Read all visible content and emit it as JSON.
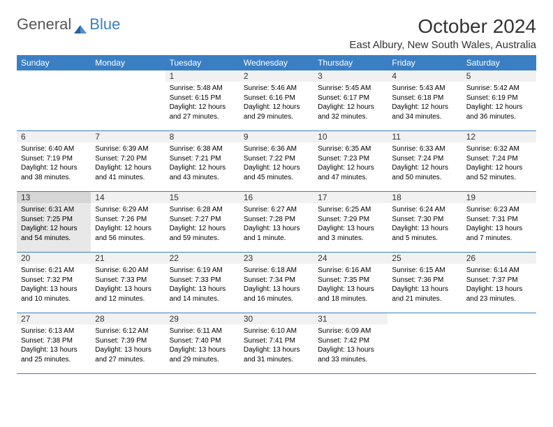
{
  "logo": {
    "text1": "General",
    "text2": "Blue"
  },
  "title": "October 2024",
  "location": "East Albury, New South Wales, Australia",
  "colors": {
    "headerBlue": "#3a7fc4",
    "logoGray": "#555555",
    "background": "#ffffff",
    "todayBg": "#e8e8e8",
    "numBg": "#f1f1f1"
  },
  "weekdays": [
    "Sunday",
    "Monday",
    "Tuesday",
    "Wednesday",
    "Thursday",
    "Friday",
    "Saturday"
  ],
  "firstDayOffset": 2,
  "daysInMonth": 31,
  "todayDate": 13,
  "days": {
    "1": {
      "sunrise": "5:48 AM",
      "sunset": "6:15 PM",
      "daylight": "12 hours and 27 minutes."
    },
    "2": {
      "sunrise": "5:46 AM",
      "sunset": "6:16 PM",
      "daylight": "12 hours and 29 minutes."
    },
    "3": {
      "sunrise": "5:45 AM",
      "sunset": "6:17 PM",
      "daylight": "12 hours and 32 minutes."
    },
    "4": {
      "sunrise": "5:43 AM",
      "sunset": "6:18 PM",
      "daylight": "12 hours and 34 minutes."
    },
    "5": {
      "sunrise": "5:42 AM",
      "sunset": "6:19 PM",
      "daylight": "12 hours and 36 minutes."
    },
    "6": {
      "sunrise": "6:40 AM",
      "sunset": "7:19 PM",
      "daylight": "12 hours and 38 minutes."
    },
    "7": {
      "sunrise": "6:39 AM",
      "sunset": "7:20 PM",
      "daylight": "12 hours and 41 minutes."
    },
    "8": {
      "sunrise": "6:38 AM",
      "sunset": "7:21 PM",
      "daylight": "12 hours and 43 minutes."
    },
    "9": {
      "sunrise": "6:36 AM",
      "sunset": "7:22 PM",
      "daylight": "12 hours and 45 minutes."
    },
    "10": {
      "sunrise": "6:35 AM",
      "sunset": "7:23 PM",
      "daylight": "12 hours and 47 minutes."
    },
    "11": {
      "sunrise": "6:33 AM",
      "sunset": "7:24 PM",
      "daylight": "12 hours and 50 minutes."
    },
    "12": {
      "sunrise": "6:32 AM",
      "sunset": "7:24 PM",
      "daylight": "12 hours and 52 minutes."
    },
    "13": {
      "sunrise": "6:31 AM",
      "sunset": "7:25 PM",
      "daylight": "12 hours and 54 minutes."
    },
    "14": {
      "sunrise": "6:29 AM",
      "sunset": "7:26 PM",
      "daylight": "12 hours and 56 minutes."
    },
    "15": {
      "sunrise": "6:28 AM",
      "sunset": "7:27 PM",
      "daylight": "12 hours and 59 minutes."
    },
    "16": {
      "sunrise": "6:27 AM",
      "sunset": "7:28 PM",
      "daylight": "13 hours and 1 minute."
    },
    "17": {
      "sunrise": "6:25 AM",
      "sunset": "7:29 PM",
      "daylight": "13 hours and 3 minutes."
    },
    "18": {
      "sunrise": "6:24 AM",
      "sunset": "7:30 PM",
      "daylight": "13 hours and 5 minutes."
    },
    "19": {
      "sunrise": "6:23 AM",
      "sunset": "7:31 PM",
      "daylight": "13 hours and 7 minutes."
    },
    "20": {
      "sunrise": "6:21 AM",
      "sunset": "7:32 PM",
      "daylight": "13 hours and 10 minutes."
    },
    "21": {
      "sunrise": "6:20 AM",
      "sunset": "7:33 PM",
      "daylight": "13 hours and 12 minutes."
    },
    "22": {
      "sunrise": "6:19 AM",
      "sunset": "7:33 PM",
      "daylight": "13 hours and 14 minutes."
    },
    "23": {
      "sunrise": "6:18 AM",
      "sunset": "7:34 PM",
      "daylight": "13 hours and 16 minutes."
    },
    "24": {
      "sunrise": "6:16 AM",
      "sunset": "7:35 PM",
      "daylight": "13 hours and 18 minutes."
    },
    "25": {
      "sunrise": "6:15 AM",
      "sunset": "7:36 PM",
      "daylight": "13 hours and 21 minutes."
    },
    "26": {
      "sunrise": "6:14 AM",
      "sunset": "7:37 PM",
      "daylight": "13 hours and 23 minutes."
    },
    "27": {
      "sunrise": "6:13 AM",
      "sunset": "7:38 PM",
      "daylight": "13 hours and 25 minutes."
    },
    "28": {
      "sunrise": "6:12 AM",
      "sunset": "7:39 PM",
      "daylight": "13 hours and 27 minutes."
    },
    "29": {
      "sunrise": "6:11 AM",
      "sunset": "7:40 PM",
      "daylight": "13 hours and 29 minutes."
    },
    "30": {
      "sunrise": "6:10 AM",
      "sunset": "7:41 PM",
      "daylight": "13 hours and 31 minutes."
    },
    "31": {
      "sunrise": "6:09 AM",
      "sunset": "7:42 PM",
      "daylight": "13 hours and 33 minutes."
    }
  },
  "labels": {
    "sunrise": "Sunrise:",
    "sunset": "Sunset:",
    "daylight": "Daylight:"
  }
}
